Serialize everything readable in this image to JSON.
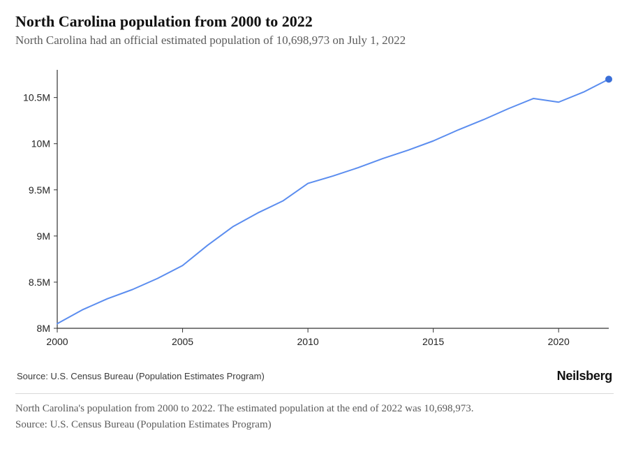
{
  "title": "North Carolina population from 2000 to 2022",
  "subtitle": "North Carolina had an official estimated population of 10,698,973 on July 1, 2022",
  "chart": {
    "type": "line",
    "background_color": "#ffffff",
    "line_color": "#5b8def",
    "line_width": 2,
    "marker_color": "#3b6fd8",
    "marker_radius": 5,
    "axis_color": "#333333",
    "tick_color": "#333333",
    "tick_font_size": 14,
    "x": {
      "min": 2000,
      "max": 2022,
      "ticks": [
        2000,
        2005,
        2010,
        2015,
        2020
      ],
      "tick_labels": [
        "2000",
        "2005",
        "2010",
        "2015",
        "2020"
      ]
    },
    "y": {
      "min": 8000000,
      "max": 10800000,
      "ticks": [
        8000000,
        8500000,
        9000000,
        9500000,
        10000000,
        10500000
      ],
      "tick_labels": [
        "8M",
        "8.5M",
        "9M",
        "9.5M",
        "10M",
        "10.5M"
      ]
    },
    "series": [
      {
        "name": "population",
        "years": [
          2000,
          2001,
          2002,
          2003,
          2004,
          2005,
          2006,
          2007,
          2008,
          2009,
          2010,
          2011,
          2012,
          2013,
          2014,
          2015,
          2016,
          2017,
          2018,
          2019,
          2020,
          2021,
          2022
        ],
        "values": [
          8050000,
          8200000,
          8320000,
          8420000,
          8540000,
          8680000,
          8900000,
          9100000,
          9250000,
          9380000,
          9570000,
          9650000,
          9740000,
          9840000,
          9930000,
          10030000,
          10150000,
          10260000,
          10380000,
          10490000,
          10450000,
          10560000,
          10698973
        ]
      }
    ],
    "end_marker_index": 22
  },
  "source_label": "Source: U.S. Census Bureau (Population Estimates Program)",
  "brand": "Neilsberg",
  "caption_line1": "North Carolina's population from 2000 to 2022. The estimated population at the end of 2022 was 10,698,973.",
  "caption_line2": "Source: U.S. Census Bureau (Population Estimates Program)"
}
